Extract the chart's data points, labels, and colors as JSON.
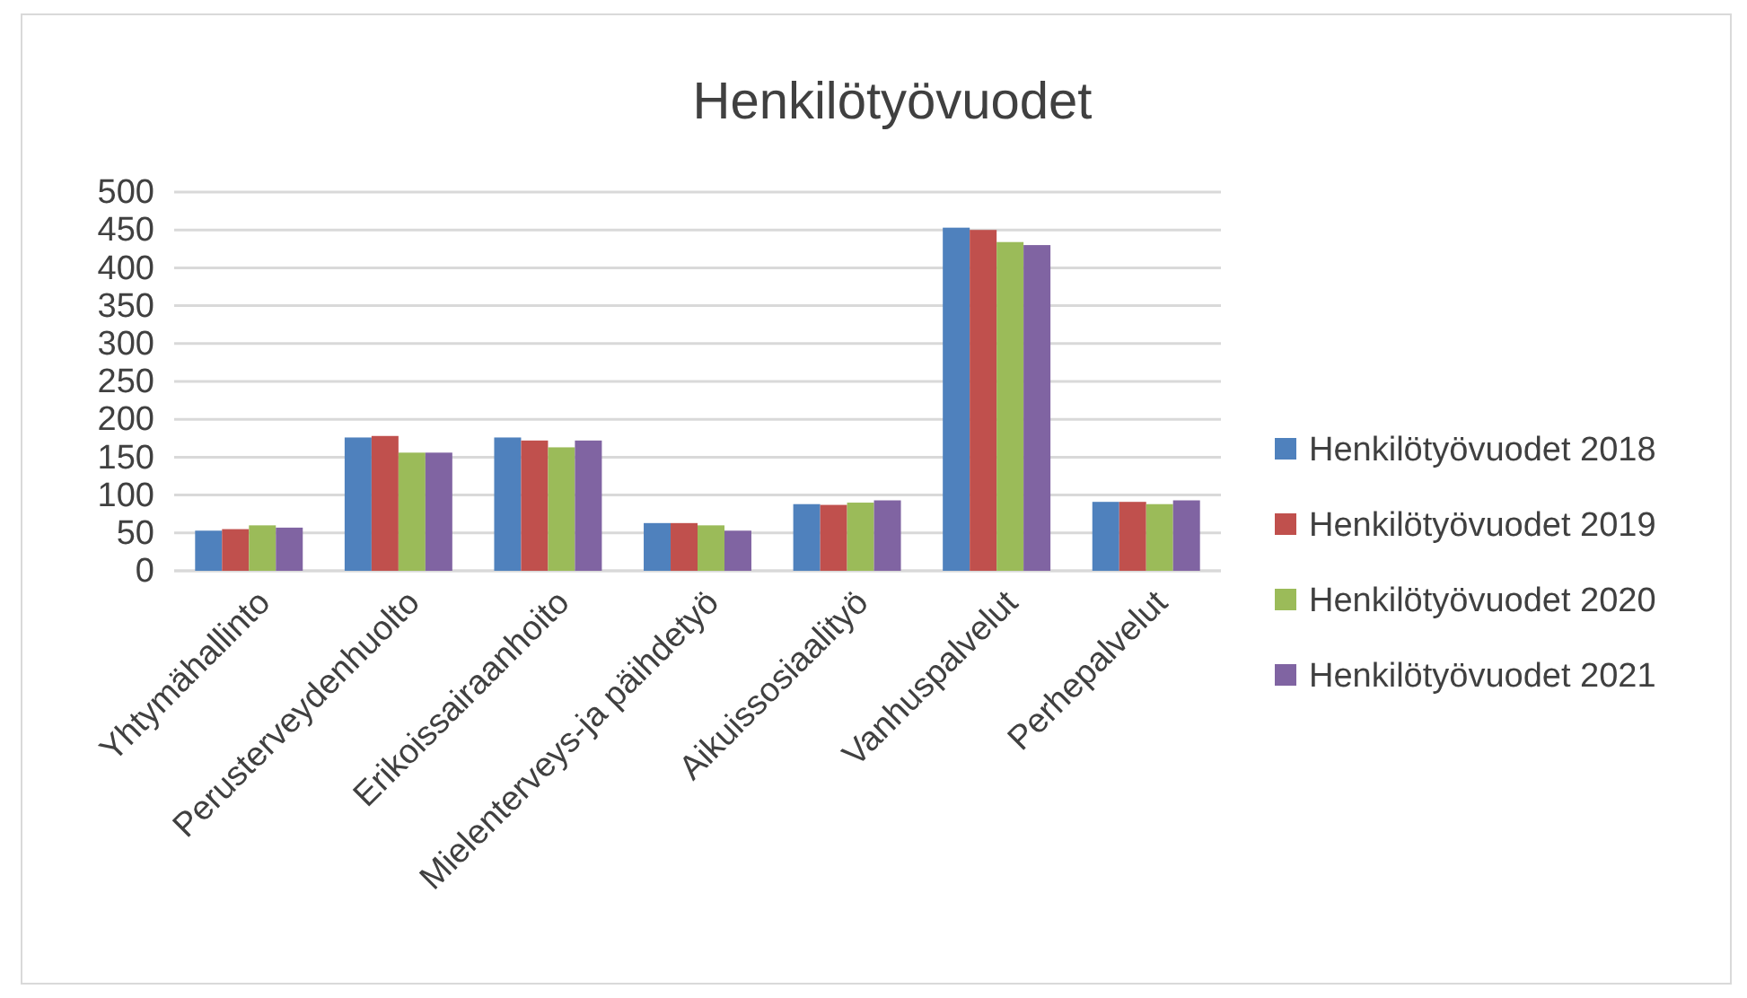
{
  "chart_data": {
    "type": "bar",
    "title": "Henkilötyövuodet",
    "categories": [
      "Yhtymähallinto",
      "Perusterveydenhuolto",
      "Erikoissairaanhoito",
      "Mielenterveys-ja päihdetyö",
      "Aikuissosiaalityö",
      "Vanhuspalvelut",
      "Perhepalvelut"
    ],
    "series": [
      {
        "name": "Henkilötyövuodet 2018",
        "color": "#4f81bd",
        "values": [
          53,
          176,
          176,
          63,
          88,
          453,
          91
        ]
      },
      {
        "name": "Henkilötyövuodet 2019",
        "color": "#c0504d",
        "values": [
          55,
          178,
          172,
          63,
          87,
          450,
          91
        ]
      },
      {
        "name": "Henkilötyövuodet 2020",
        "color": "#9bbb59",
        "values": [
          60,
          156,
          163,
          60,
          90,
          434,
          88
        ]
      },
      {
        "name": "Henkilötyövuodet 2021",
        "color": "#8064a2",
        "values": [
          57,
          156,
          172,
          53,
          93,
          430,
          93
        ]
      }
    ],
    "ylim": [
      0,
      500
    ],
    "yticks": [
      0,
      50,
      100,
      150,
      200,
      250,
      300,
      350,
      400,
      450,
      500
    ],
    "grid": "y",
    "legend": "right"
  }
}
